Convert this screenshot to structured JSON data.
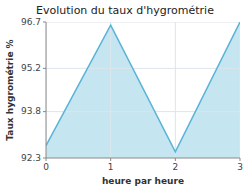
{
  "chart_data": {
    "type": "area",
    "title": "Evolution du taux d'hygrométrie",
    "xlabel": "heure par heure",
    "ylabel": "Taux hygrométrie %",
    "x": [
      0,
      1,
      2,
      3
    ],
    "y": [
      92.7,
      96.6,
      92.5,
      96.7
    ],
    "color": "#5ab4d6",
    "xlim": [
      0,
      3
    ],
    "ylim": [
      92.3,
      96.7
    ],
    "xticks": [
      0,
      1,
      2,
      3
    ],
    "yticks": [
      92.3,
      93.8,
      95.2,
      96.7
    ],
    "grid": true
  }
}
